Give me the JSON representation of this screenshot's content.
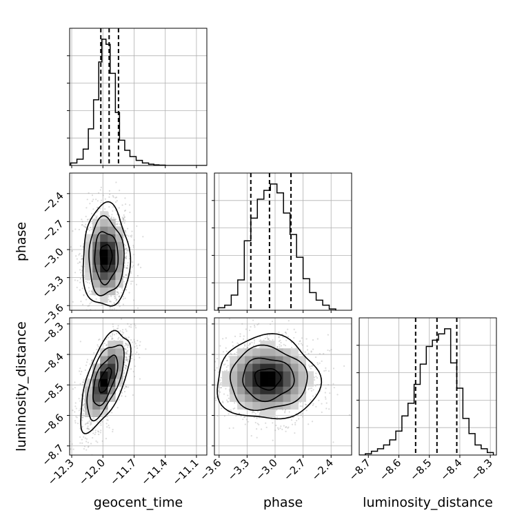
{
  "chart_data": {
    "type": "corner",
    "parameters": [
      "geocent_time",
      "phase",
      "luminosity_distance"
    ],
    "labels": {
      "geocent_time": "geocent_time",
      "phase": "phase",
      "luminosity_distance": "luminosity_distance"
    },
    "ranges": {
      "geocent_time": [
        -12.32,
        -11.0
      ],
      "phase": [
        -3.65,
        -2.18
      ],
      "luminosity_distance": [
        -8.73,
        -8.28
      ]
    },
    "ticks": {
      "geocent_time": [
        -12.3,
        -12.0,
        -11.7,
        -11.4,
        -11.1
      ],
      "phase": [
        -3.6,
        -3.3,
        -3.0,
        -2.7,
        -2.4
      ],
      "luminosity_distance": [
        -8.7,
        -8.6,
        -8.5,
        -8.4,
        -8.3
      ]
    },
    "tick_labels": {
      "geocent_time": [
        "−12.3",
        "−12.0",
        "−11.7",
        "−11.4",
        "−11.1"
      ],
      "phase": [
        "−3.6",
        "−3.3",
        "−3.0",
        "−2.7",
        "−2.4"
      ],
      "luminosity_distance": [
        "−8.7",
        "−8.6",
        "−8.5",
        "−8.4",
        "−8.3"
      ]
    },
    "quantiles": {
      "geocent_time": [
        -12.02,
        -11.94,
        -11.85
      ],
      "phase": [
        -3.26,
        -3.06,
        -2.83
      ],
      "luminosity_distance": [
        -8.545,
        -8.475,
        -8.41
      ]
    },
    "histograms": {
      "geocent_time": {
        "edges": [
          -12.31,
          -12.25,
          -12.19,
          -12.14,
          -12.09,
          -12.04,
          -12.01,
          -11.97,
          -11.93,
          -11.88,
          -11.84,
          -11.79,
          -11.74,
          -11.68,
          -11.62,
          -11.56,
          -11.51,
          -11.46,
          -11.4,
          -11.0
        ],
        "counts": [
          0.02,
          0.05,
          0.13,
          0.29,
          0.52,
          0.82,
          1.0,
          0.96,
          0.73,
          0.42,
          0.2,
          0.12,
          0.07,
          0.04,
          0.02,
          0.01,
          0.005,
          0.003,
          0.0
        ]
      },
      "phase": {
        "edges": [
          -3.61,
          -3.54,
          -3.47,
          -3.4,
          -3.33,
          -3.26,
          -3.19,
          -3.12,
          -3.05,
          -2.98,
          -2.91,
          -2.84,
          -2.77,
          -2.7,
          -2.63,
          -2.56,
          -2.49,
          -2.42,
          -2.35
        ],
        "counts": [
          0.02,
          0.04,
          0.12,
          0.24,
          0.55,
          0.73,
          0.88,
          0.95,
          1.0,
          0.93,
          0.77,
          0.6,
          0.42,
          0.25,
          0.14,
          0.08,
          0.04,
          0.01
        ]
      },
      "luminosity_distance": {
        "edges": [
          -8.73,
          -8.71,
          -8.69,
          -8.67,
          -8.65,
          -8.63,
          -8.61,
          -8.59,
          -8.57,
          -8.55,
          -8.53,
          -8.51,
          -8.49,
          -8.47,
          -8.45,
          -8.43,
          -8.41,
          -8.39,
          -8.37,
          -8.35,
          -8.33,
          -8.31,
          -8.29
        ],
        "counts": [
          0.0,
          0.01,
          0.03,
          0.05,
          0.08,
          0.12,
          0.19,
          0.31,
          0.41,
          0.56,
          0.72,
          0.86,
          0.91,
          0.96,
          1.0,
          0.73,
          0.53,
          0.29,
          0.17,
          0.08,
          0.05,
          0.02
        ]
      }
    },
    "pairs": [
      {
        "x": "geocent_time",
        "y": "phase",
        "center": [
          -11.97,
          -3.08
        ],
        "std": [
          0.09,
          0.22
        ],
        "corr": 0.0
      },
      {
        "x": "geocent_time",
        "y": "luminosity_distance",
        "center": [
          -11.98,
          -8.485
        ],
        "std": [
          0.095,
          0.065
        ],
        "corr": 0.62
      },
      {
        "x": "phase",
        "y": "luminosity_distance",
        "center": [
          -3.08,
          -8.48
        ],
        "std": [
          0.22,
          0.055
        ],
        "corr": 0.0
      }
    ],
    "contour_levels_sigma": [
      0.5,
      1.0,
      1.5,
      2.0
    ],
    "grid": true
  }
}
